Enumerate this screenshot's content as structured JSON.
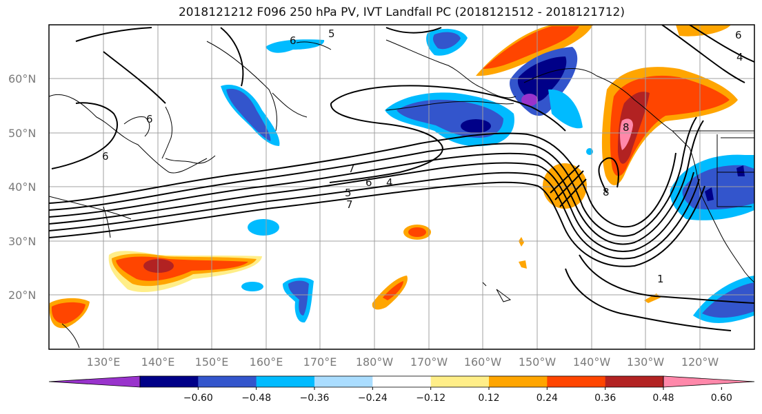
{
  "title": "2018121212 F096 250 hPa PV, IVT Landfall PC (2018121512 - 2018121712)",
  "latitude_labels": [
    "60°N",
    "50°N",
    "40°N",
    "30°N",
    "20°N"
  ],
  "longitude_labels": [
    "130°E",
    "140°E",
    "150°E",
    "160°E",
    "170°E",
    "180°W",
    "170°W",
    "160°W",
    "150°W",
    "140°W",
    "130°W",
    "120°W"
  ],
  "contour_labels": [
    "6",
    "5",
    "7",
    "6",
    "4",
    "5",
    "7",
    "6",
    "6",
    "8",
    "1",
    "8",
    "6",
    "4"
  ],
  "colorbar": {
    "colors": [
      "#9933cc",
      "#000088",
      "#3355cc",
      "#00bbff",
      "#aaddff",
      "#ffffff",
      "#ffee88",
      "#ffa500",
      "#ff4500",
      "#b22222",
      "#ff88aa"
    ],
    "tick_labels": [
      "−0.60",
      "−0.48",
      "−0.36",
      "−0.24",
      "−0.12",
      "0.12",
      "0.24",
      "0.36",
      "0.48",
      "0.60"
    ]
  }
}
